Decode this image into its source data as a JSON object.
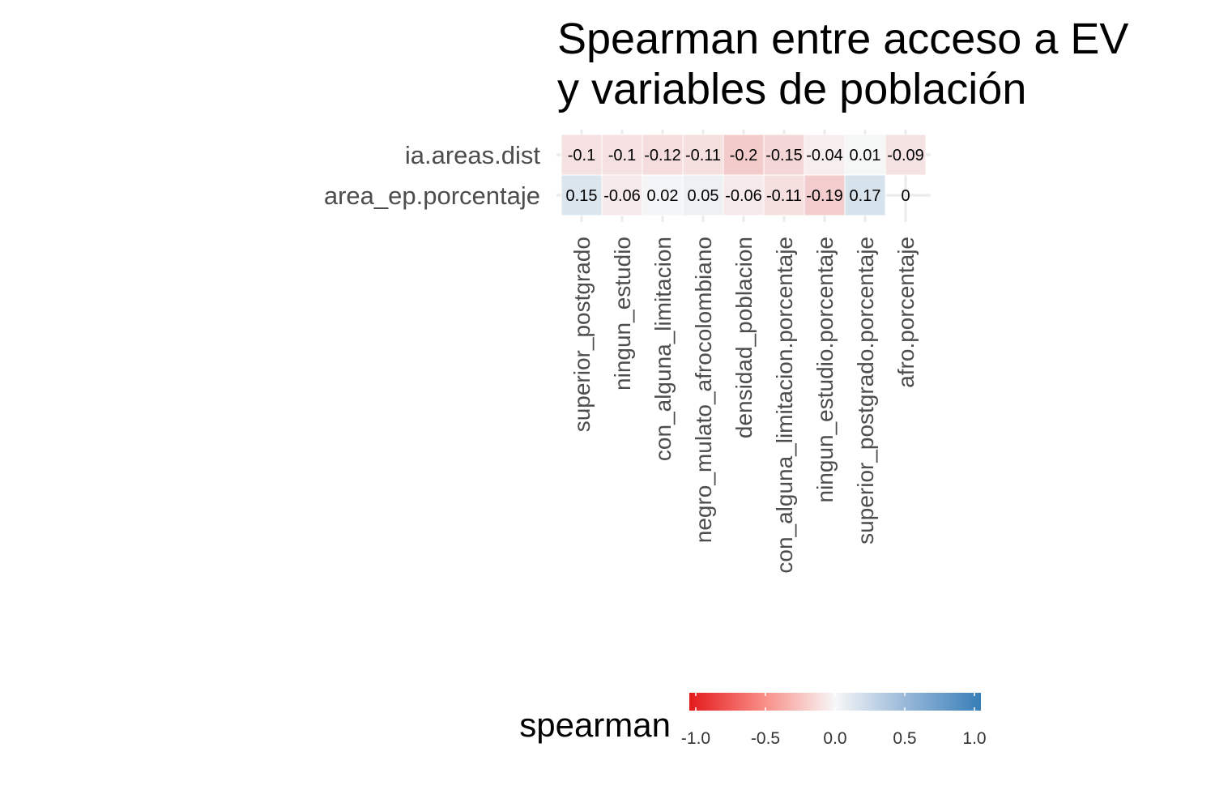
{
  "chart_data": {
    "type": "heatmap",
    "title_lines": [
      "Spearman entre acceso a EV",
      "y variables de población"
    ],
    "xlabel": "",
    "ylabel": "",
    "rows": [
      "ia.areas.dist",
      "area_ep.porcentaje"
    ],
    "columns": [
      "superior_postgrado",
      "ningun_estudio",
      "con_alguna_limitacion",
      "negro_mulato_afrocolombiano",
      "densidad_poblacion",
      "con_alguna_limitacion.porcentaje",
      "ningun_estudio.porcentaje",
      "superior_postgrado.porcentaje",
      "afro.porcentaje"
    ],
    "values": [
      [
        -0.1,
        -0.1,
        -0.12,
        -0.11,
        -0.2,
        -0.15,
        -0.04,
        0.01,
        -0.09
      ],
      [
        0.15,
        -0.06,
        0.02,
        0.05,
        -0.06,
        -0.11,
        -0.19,
        0.17,
        0
      ]
    ],
    "labels": [
      [
        "-0.1",
        "-0.1",
        "-0.12",
        "-0.11",
        "-0.2",
        "-0.15",
        "-0.04",
        "0.01",
        "-0.09"
      ],
      [
        "0.15",
        "-0.06",
        "0.02",
        "0.05",
        "-0.06",
        "-0.11",
        "-0.19",
        "0.17",
        "0"
      ]
    ],
    "color_scale": {
      "low": -1.0,
      "mid": 0.0,
      "high": 1.0,
      "low_color": "#e41a1c",
      "mid_color": "#f7f7f7",
      "high_color": "#377eb8"
    },
    "legend": {
      "title": "spearman",
      "ticks": [
        "-1.0",
        "-0.5",
        "0.0",
        "0.5",
        "1.0"
      ],
      "tick_values": [
        -1.0,
        -0.5,
        0.0,
        0.5,
        1.0
      ],
      "placement": "bottom"
    },
    "grid": true
  }
}
